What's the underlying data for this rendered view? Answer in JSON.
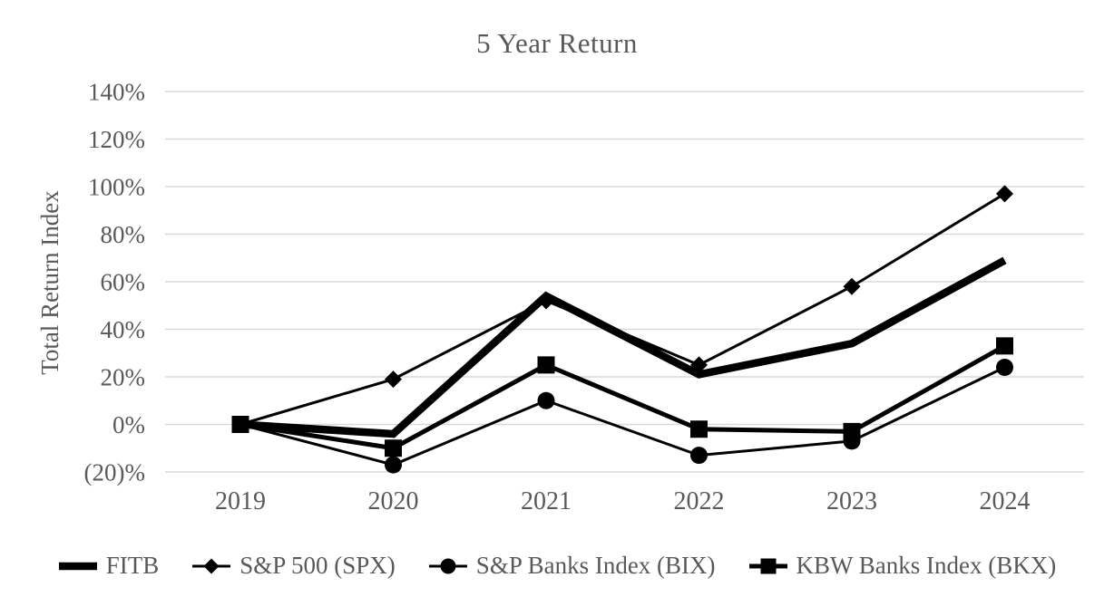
{
  "title": "5 Year Return",
  "colors": {
    "series": "#000000",
    "grid": "#d9d9d9",
    "label_text": "#595959",
    "background": "#ffffff"
  },
  "chart_data": {
    "type": "line",
    "title": "5 Year Return",
    "xlabel": "",
    "ylabel": "Total Return Index",
    "categories": [
      "2019",
      "2020",
      "2021",
      "2022",
      "2023",
      "2024"
    ],
    "series": [
      {
        "name": "FITB",
        "marker": "none",
        "line_width": 8.5,
        "values": [
          0,
          -4,
          54,
          21,
          34,
          69
        ]
      },
      {
        "name": "S&P 500 (SPX)",
        "marker": "diamond",
        "line_width": 3,
        "values": [
          0,
          19,
          52,
          25,
          58,
          97
        ]
      },
      {
        "name": "S&P Banks Index (BIX)",
        "marker": "circle",
        "line_width": 3,
        "values": [
          0,
          -17,
          10,
          -13,
          -7,
          24
        ]
      },
      {
        "name": "KBW Banks Index (BKX)",
        "marker": "square",
        "line_width": 5,
        "values": [
          0,
          -10,
          25,
          -2,
          -3,
          33
        ]
      }
    ],
    "ylim": [
      -20,
      140
    ],
    "ytick_step": 20,
    "ytick_labels": [
      "(20)%",
      "0%",
      "20%",
      "40%",
      "60%",
      "80%",
      "100%",
      "120%",
      "140%"
    ],
    "grid": "horizontal-only",
    "legend_position": "bottom",
    "units": "percent cumulative total return, 2019 = 0%"
  }
}
